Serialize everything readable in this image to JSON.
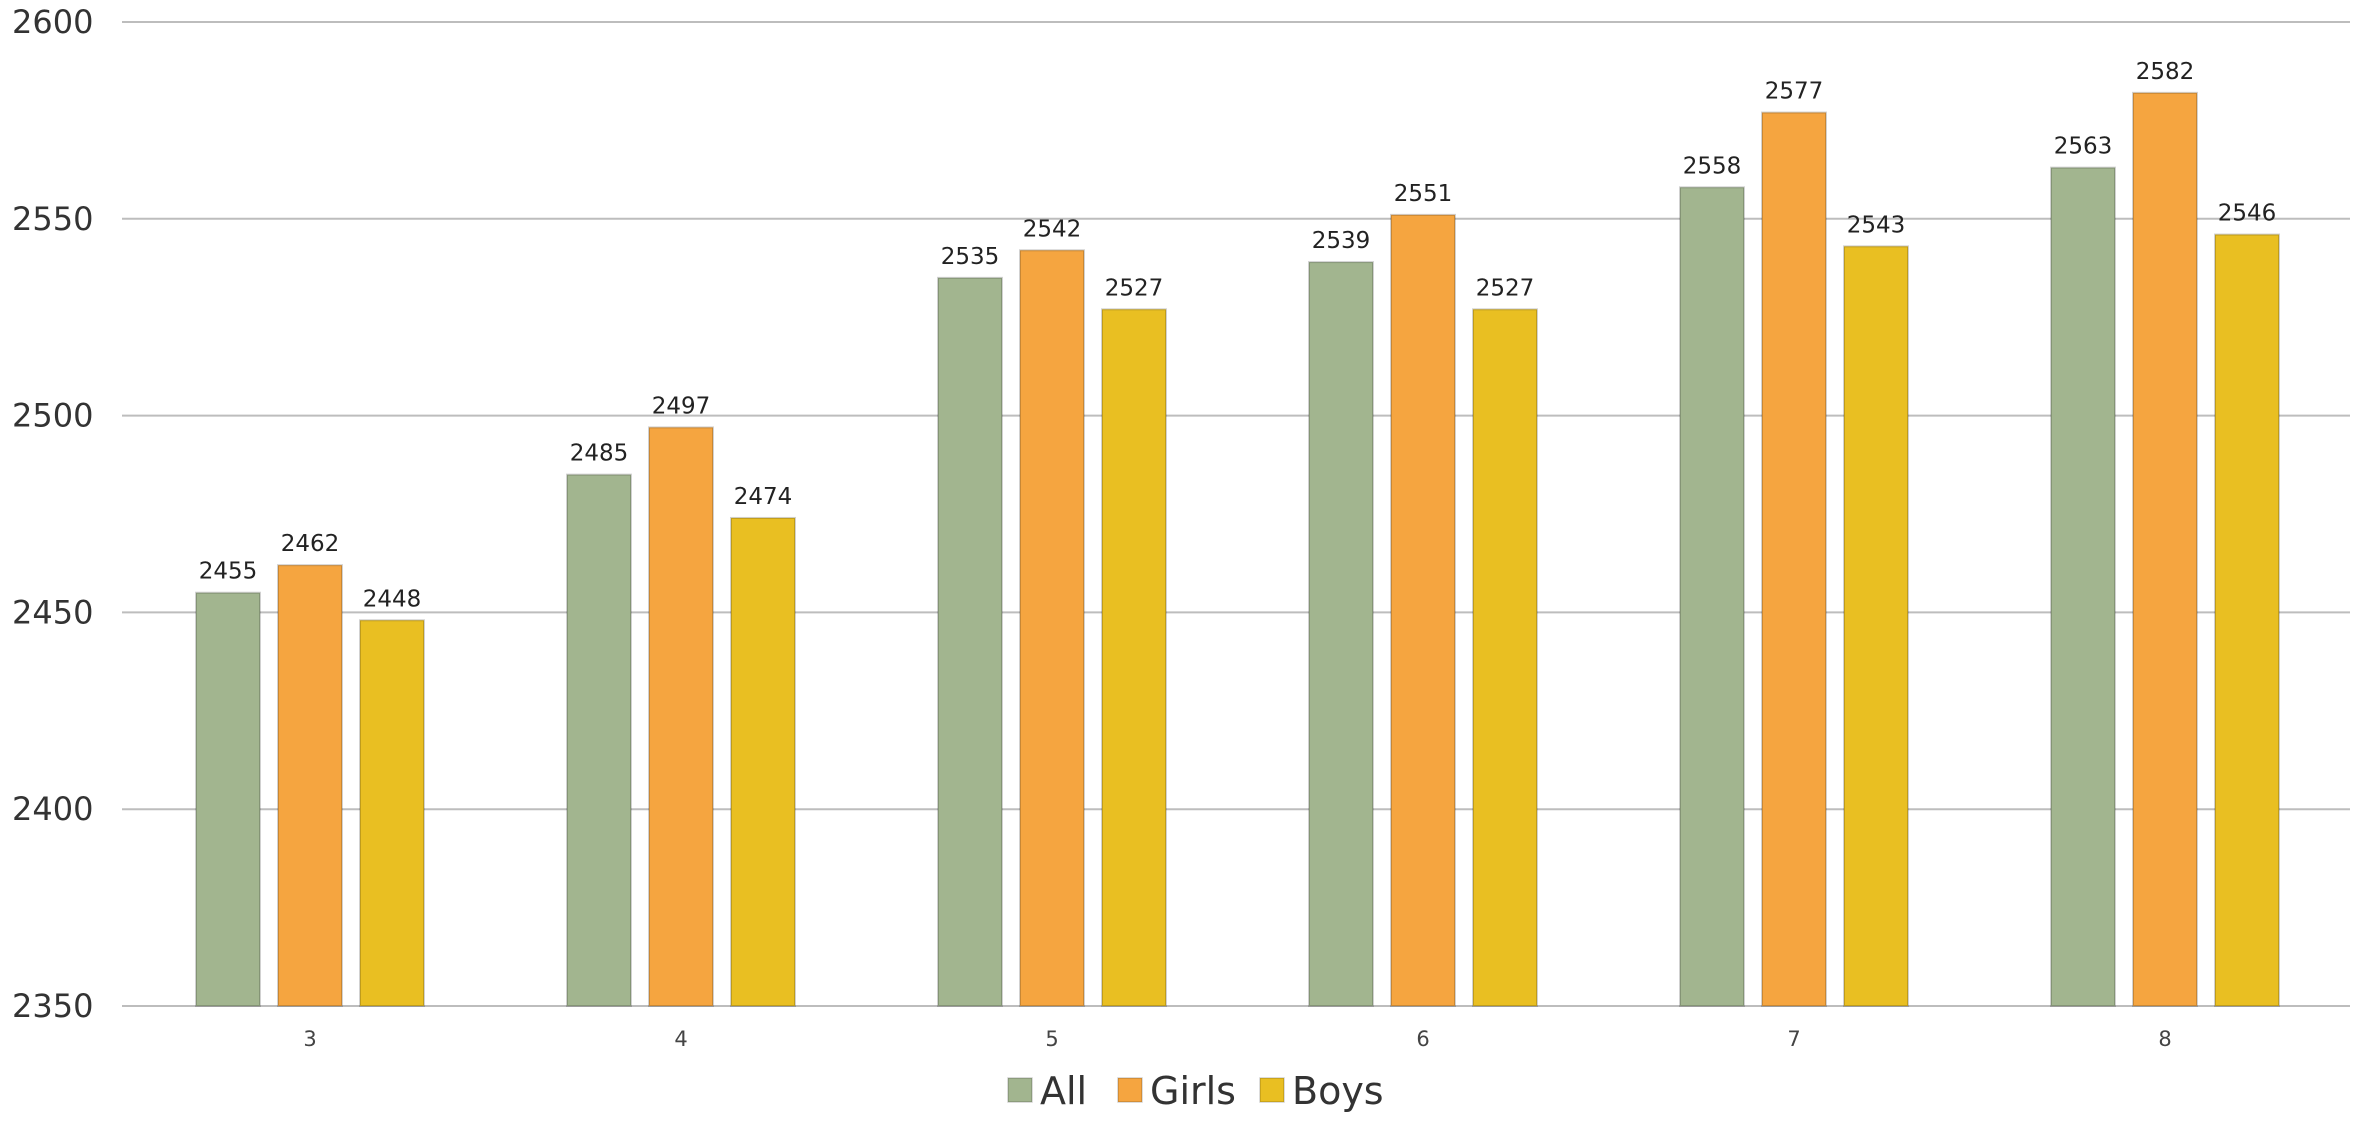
{
  "chart_data": {
    "type": "bar",
    "categories": [
      "3",
      "4",
      "5",
      "6",
      "7",
      "8"
    ],
    "series": [
      {
        "name": "All",
        "values": [
          2455,
          2485,
          2535,
          2539,
          2558,
          2563
        ],
        "color": "#a2b58f"
      },
      {
        "name": "Girls",
        "values": [
          2462,
          2497,
          2542,
          2551,
          2577,
          2582
        ],
        "color": "#f5a540"
      },
      {
        "name": "Boys",
        "values": [
          2448,
          2474,
          2527,
          2527,
          2543,
          2546
        ],
        "color": "#e9bf22"
      }
    ],
    "title": "",
    "xlabel": "",
    "ylabel": "",
    "ylim": [
      2350,
      2600
    ],
    "yticks": [
      2350,
      2400,
      2450,
      2500,
      2550,
      2600
    ],
    "grid": true,
    "legend": "bottom"
  }
}
